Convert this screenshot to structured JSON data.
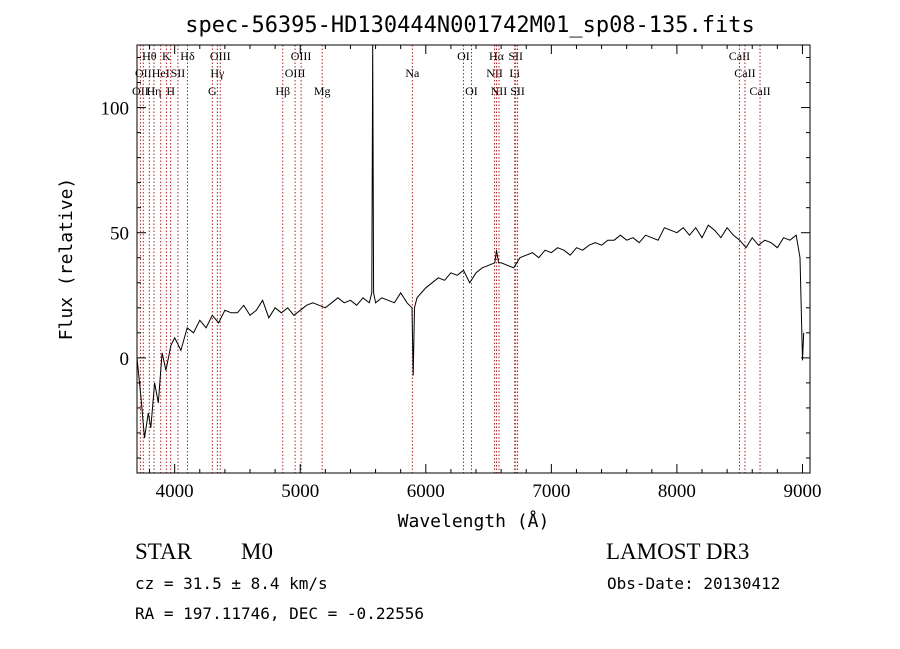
{
  "chart_data": {
    "type": "line",
    "title": "spec-56395-HD130444N001742M01_sp08-135.fits",
    "xlabel": "Wavelength (Å)",
    "ylabel": "Flux (relative)",
    "xlim": [
      3700,
      9060
    ],
    "ylim": [
      -46,
      125
    ],
    "x_ticks": [
      4000,
      5000,
      6000,
      7000,
      8000,
      9000
    ],
    "x_tick_labels": [
      "4000",
      "5000",
      "6000",
      "7000",
      "8000",
      "9000"
    ],
    "y_ticks": [
      0,
      50,
      100
    ],
    "y_tick_labels": [
      "0",
      "50",
      "100"
    ],
    "series": [
      {
        "name": "spectrum",
        "x": [
          3700,
          3730,
          3760,
          3790,
          3810,
          3840,
          3870,
          3900,
          3930,
          3970,
          4000,
          4050,
          4100,
          4150,
          4200,
          4250,
          4300,
          4350,
          4400,
          4450,
          4500,
          4550,
          4600,
          4650,
          4700,
          4750,
          4800,
          4850,
          4900,
          4950,
          5000,
          5050,
          5100,
          5150,
          5200,
          5250,
          5300,
          5350,
          5400,
          5450,
          5500,
          5550,
          5570,
          5577,
          5584,
          5600,
          5650,
          5700,
          5750,
          5800,
          5850,
          5890,
          5900,
          5910,
          5930,
          6000,
          6050,
          6100,
          6150,
          6200,
          6250,
          6300,
          6350,
          6400,
          6450,
          6500,
          6550,
          6563,
          6580,
          6600,
          6650,
          6700,
          6750,
          6800,
          6850,
          6900,
          6950,
          7000,
          7050,
          7100,
          7150,
          7200,
          7250,
          7300,
          7350,
          7400,
          7450,
          7500,
          7550,
          7600,
          7650,
          7700,
          7750,
          7800,
          7850,
          7900,
          7950,
          8000,
          8050,
          8100,
          8150,
          8200,
          8250,
          8300,
          8350,
          8400,
          8450,
          8500,
          8550,
          8600,
          8650,
          8700,
          8750,
          8800,
          8850,
          8900,
          8950,
          8980,
          9000,
          9010
        ],
        "y": [
          0,
          -15,
          -32,
          -22,
          -28,
          -10,
          -18,
          2,
          -5,
          5,
          8,
          3,
          12,
          10,
          15,
          12,
          17,
          14,
          19,
          18,
          18,
          21,
          17,
          19,
          23,
          16,
          20,
          18,
          20,
          17,
          19,
          21,
          22,
          21,
          20,
          22,
          24,
          22,
          23,
          21,
          24,
          22,
          26,
          125,
          26,
          22,
          24,
          23,
          22,
          26,
          22,
          20,
          -7,
          20,
          24,
          28,
          30,
          32,
          31,
          34,
          33,
          35,
          30,
          34,
          36,
          37,
          38,
          43,
          38,
          38,
          37,
          36,
          40,
          41,
          42,
          40,
          43,
          42,
          44,
          43,
          41,
          44,
          43,
          45,
          46,
          45,
          47,
          47,
          49,
          47,
          48,
          46,
          49,
          48,
          47,
          52,
          51,
          50,
          52,
          49,
          52,
          48,
          53,
          51,
          48,
          52,
          49,
          47,
          44,
          48,
          45,
          47,
          46,
          44,
          48,
          47,
          49,
          40,
          -1,
          10
        ],
        "color": "#000000"
      }
    ],
    "line_markers": [
      {
        "wavelength": 3727,
        "label": "OII",
        "row": 2
      },
      {
        "wavelength": 3750,
        "label": "OII",
        "row": 1
      },
      {
        "wavelength": 3798,
        "label": "Hθ",
        "row": 0
      },
      {
        "wavelength": 3835,
        "label": "Hη",
        "row": 2
      },
      {
        "wavelength": 3889,
        "label": "HeI",
        "row": 1
      },
      {
        "wavelength": 3934,
        "label": "K",
        "row": 0
      },
      {
        "wavelength": 3968,
        "label": "H",
        "row": 2
      },
      {
        "wavelength": 4026,
        "label": "SII",
        "row": 1
      },
      {
        "wavelength": 4102,
        "label": "Hδ",
        "row": 0
      },
      {
        "wavelength": 4300,
        "label": "G",
        "row": 2
      },
      {
        "wavelength": 4340,
        "label": "Hγ",
        "row": 1
      },
      {
        "wavelength": 4363,
        "label": "OIII",
        "row": 0
      },
      {
        "wavelength": 4861,
        "label": "Hβ",
        "row": 2
      },
      {
        "wavelength": 4959,
        "label": "OIII",
        "row": 1
      },
      {
        "wavelength": 5007,
        "label": "OIII",
        "row": 0
      },
      {
        "wavelength": 5175,
        "label": "Mg",
        "row": 2
      },
      {
        "wavelength": 5893,
        "label": "Na",
        "row": 1
      },
      {
        "wavelength": 6300,
        "label": "OI",
        "row": 0
      },
      {
        "wavelength": 6364,
        "label": "OI",
        "row": 2
      },
      {
        "wavelength": 6548,
        "label": "NII",
        "row": 1
      },
      {
        "wavelength": 6563,
        "label": "Hα",
        "row": 0
      },
      {
        "wavelength": 6583,
        "label": "NII",
        "row": 2
      },
      {
        "wavelength": 6708,
        "label": "Li",
        "row": 1
      },
      {
        "wavelength": 6716,
        "label": "SII",
        "row": 0
      },
      {
        "wavelength": 6731,
        "label": "SII",
        "row": 2
      },
      {
        "wavelength": 8498,
        "label": "CaII",
        "row": 0
      },
      {
        "wavelength": 8542,
        "label": "CaII",
        "row": 1
      },
      {
        "wavelength": 8662,
        "label": "CaII",
        "row": 2
      }
    ]
  },
  "info": {
    "object_class": "STAR",
    "subclass": "M0",
    "survey": "LAMOST DR3",
    "redshift": "cz = 31.5 ± 8.4 km/s",
    "obs_date": "Obs-Date: 20130412",
    "coords": "RA = 197.11746, DEC =  -0.22556"
  }
}
